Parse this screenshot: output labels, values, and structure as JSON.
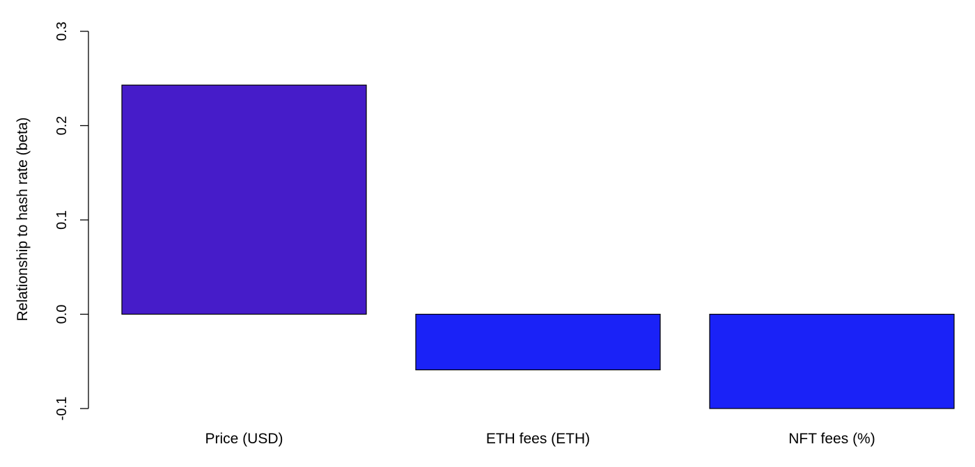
{
  "chart_data": {
    "type": "bar",
    "title": "",
    "xlabel": "",
    "ylabel": "Relationship to hash rate (beta)",
    "categories": [
      "Price (USD)",
      "ETH fees (ETH)",
      "NFT fees (%)"
    ],
    "values": [
      0.243,
      -0.059,
      -0.1
    ],
    "bar_colors": [
      "#461CC9",
      "#1A22F7",
      "#1A22F7"
    ],
    "ylim": [
      -0.1,
      0.3
    ],
    "yticks": [
      -0.1,
      0.0,
      0.1,
      0.2,
      0.3
    ],
    "ytick_labels": [
      "-0.1",
      "0.0",
      "0.1",
      "0.2",
      "0.3"
    ],
    "grid": false,
    "legend": "none"
  }
}
